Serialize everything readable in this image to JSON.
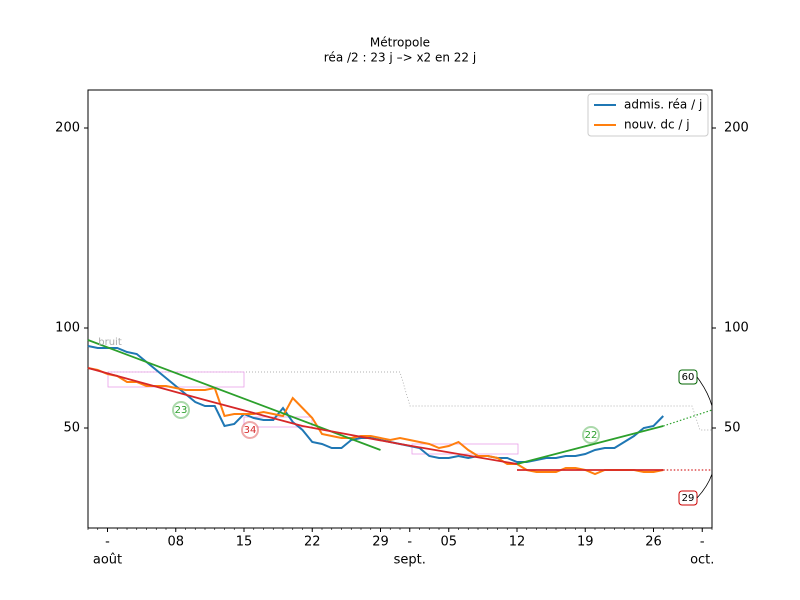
{
  "chart_data": {
    "type": "line",
    "title": "Métropole",
    "subtitle": "réa /2 : 23 j –> x2 en 22 j",
    "x": [
      -2,
      -1,
      0,
      1,
      2,
      3,
      4,
      5,
      6,
      7,
      8,
      9,
      10,
      11,
      12,
      13,
      14,
      15,
      16,
      17,
      18,
      19,
      20,
      21,
      22,
      23,
      24,
      25,
      26,
      27,
      28,
      29,
      30,
      31,
      32,
      33,
      34,
      35,
      36,
      37,
      38,
      39,
      40,
      41,
      42,
      43,
      44,
      45,
      46,
      47,
      48,
      49,
      50,
      51,
      52,
      53,
      54,
      55,
      56,
      57
    ],
    "series": [
      {
        "name": "admis. réa / j",
        "color": "#1f77b4",
        "values": [
          91,
          90,
          90,
          90,
          88,
          87,
          83,
          79,
          75,
          71,
          67,
          63,
          61,
          61,
          51,
          52,
          57,
          55,
          54,
          54,
          60,
          53,
          49,
          43,
          42,
          40,
          40,
          44,
          45,
          45,
          44,
          43,
          42,
          41,
          40,
          36,
          35,
          35,
          36,
          35,
          36,
          36,
          35,
          35,
          33,
          33,
          34,
          35,
          35,
          36,
          36,
          37,
          39,
          40,
          40,
          43,
          46,
          50,
          51,
          56
        ]
      },
      {
        "name": "nouv. dc / j",
        "color": "#ff7f0e",
        "values": [
          80,
          79,
          77,
          76,
          73,
          73,
          71,
          71,
          71,
          70,
          69,
          69,
          69,
          70,
          56,
          57,
          57,
          57,
          58,
          57,
          56,
          65,
          60,
          55,
          47,
          46,
          45,
          45,
          46,
          46,
          45,
          44,
          45,
          44,
          43,
          42,
          40,
          41,
          43,
          39,
          36,
          36,
          35,
          32,
          32,
          29,
          28,
          28,
          28,
          30,
          30,
          29,
          27,
          29,
          29,
          29,
          29,
          28,
          28,
          29
        ]
      }
    ],
    "fits": [
      {
        "color": "#2ca02c",
        "style": "solid",
        "x": [
          -2,
          28
        ],
        "values": [
          94,
          39
        ]
      },
      {
        "color": "#2ca02c",
        "style": "solid",
        "x": [
          42,
          57
        ],
        "values": [
          32,
          51
        ]
      },
      {
        "color": "#2ca02c",
        "style": "dotted",
        "x": [
          57,
          62
        ],
        "values": [
          51,
          59
        ]
      },
      {
        "color": "#d62728",
        "style": "solid",
        "x": [
          -2,
          10,
          20,
          30,
          42
        ],
        "values": [
          80,
          64,
          51,
          42,
          32
        ]
      },
      {
        "color": "#d62728",
        "style": "solid",
        "x": [
          42,
          57
        ],
        "values": [
          29,
          29
        ]
      },
      {
        "color": "#d62728",
        "style": "dotted",
        "x": [
          57,
          62
        ],
        "values": [
          29,
          29
        ]
      }
    ],
    "annotations": [
      {
        "text": "23",
        "color": "#2ca02c"
      },
      {
        "text": "34",
        "color": "#d62728"
      },
      {
        "text": "22",
        "color": "#2ca02c"
      },
      {
        "text": "60",
        "color": "#006400"
      },
      {
        "text": "29",
        "color": "#cc0000"
      },
      {
        "text": "bruit",
        "color": "#aaaaaa"
      }
    ],
    "xlim": [
      -2,
      62
    ],
    "xticks": [
      {
        "value": 0,
        "label": "-"
      },
      {
        "value": 7,
        "label": "08"
      },
      {
        "value": 14,
        "label": "15"
      },
      {
        "value": 21,
        "label": "22"
      },
      {
        "value": 28,
        "label": "29"
      },
      {
        "value": 31,
        "label": "-"
      },
      {
        "value": 35,
        "label": "05"
      },
      {
        "value": 42,
        "label": "12"
      },
      {
        "value": 49,
        "label": "19"
      },
      {
        "value": 56,
        "label": "26"
      },
      {
        "value": 61,
        "label": "-"
      }
    ],
    "month_ticks": [
      {
        "value": 0,
        "label": "août"
      },
      {
        "value": 31,
        "label": "sept."
      },
      {
        "value": 61,
        "label": "oct."
      }
    ],
    "ylim": [
      0,
      219
    ],
    "yticks": [
      50,
      100,
      200
    ],
    "legend": "upper right"
  }
}
